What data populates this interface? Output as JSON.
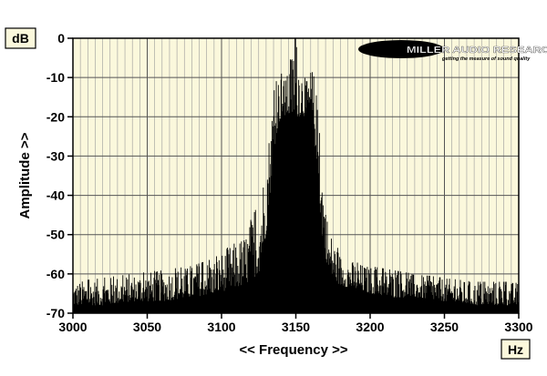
{
  "chart_data": {
    "type": "area",
    "title": "",
    "xlabel": "<< Frequency >>",
    "ylabel": "Amplitude >>",
    "y_unit": "dB",
    "x_unit": "Hz",
    "xlim": [
      3000,
      3300
    ],
    "ylim": [
      -70,
      0
    ],
    "x_ticks": [
      3000,
      3050,
      3100,
      3150,
      3200,
      3250,
      3300
    ],
    "x_tick_labels": [
      "3000",
      "3050",
      "3100",
      "3150",
      "3200",
      "3250",
      "3300"
    ],
    "y_ticks": [
      0,
      -10,
      -20,
      -30,
      -40,
      -50,
      -60,
      -70
    ],
    "y_tick_labels": [
      "0",
      "-10",
      "-20",
      "-30",
      "-40",
      "-50",
      "-60",
      "-70"
    ],
    "grid": true,
    "plot_background": "#fbf8dc",
    "fill_color": "#000000",
    "logo": {
      "name": "MILLER AUDIO RESEARCH",
      "tagline": "getting the measure of sound quality"
    },
    "series": [
      {
        "x": [
          3000,
          3020,
          3040,
          3060,
          3080,
          3095,
          3105,
          3115,
          3125,
          3130,
          3135,
          3138,
          3141,
          3143,
          3145,
          3147,
          3149,
          3150,
          3151,
          3153,
          3155,
          3157,
          3159,
          3161,
          3164,
          3167,
          3172,
          3180,
          3190,
          3200,
          3215,
          3230,
          3250,
          3270,
          3300
        ],
        "peak_envelope": [
          -62,
          -61,
          -60,
          -59,
          -58,
          -56,
          -53,
          -50,
          -42,
          -30,
          -14,
          -9,
          -9,
          -11,
          -8,
          -4,
          0,
          0,
          0,
          -4,
          -9,
          -11,
          -9,
          -6,
          -14,
          -30,
          -48,
          -55,
          -57,
          -58,
          -59,
          -60,
          -61,
          -62,
          -62
        ],
        "floor": [
          -68,
          -68,
          -67,
          -67,
          -66,
          -65,
          -64,
          -63,
          -60,
          -50,
          -30,
          -22,
          -20,
          -20,
          -20,
          -20,
          -20,
          -20,
          -20,
          -20,
          -20,
          -20,
          -20,
          -22,
          -30,
          -48,
          -60,
          -63,
          -64,
          -65,
          -66,
          -66,
          -67,
          -68,
          -68
        ]
      }
    ]
  }
}
